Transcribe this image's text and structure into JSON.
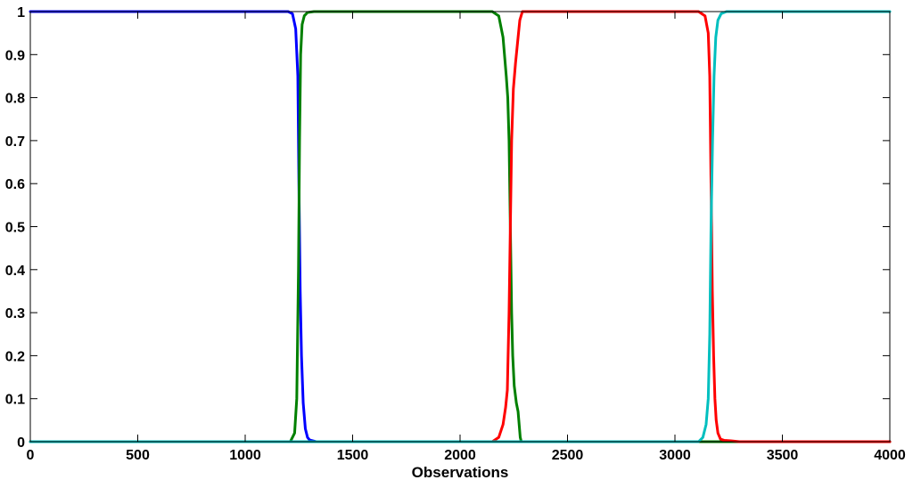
{
  "chart_data": {
    "type": "line",
    "title": "",
    "xlabel": "Observations",
    "ylabel": "",
    "xlim": [
      0,
      4000
    ],
    "ylim": [
      0,
      1
    ],
    "x_ticks": [
      0,
      500,
      1000,
      1500,
      2000,
      2500,
      3000,
      3500,
      4000
    ],
    "y_ticks": [
      0,
      0.1,
      0.2,
      0.3,
      0.4,
      0.5,
      0.6,
      0.7,
      0.8,
      0.9,
      1
    ],
    "x_tick_labels": [
      "0",
      "500",
      "1000",
      "1500",
      "2000",
      "2500",
      "3000",
      "3500",
      "4000"
    ],
    "y_tick_labels": [
      "0",
      "0.1",
      "0.2",
      "0.3",
      "0.4",
      "0.5",
      "0.6",
      "0.7",
      "0.8",
      "0.9",
      "1"
    ],
    "grid": false,
    "legend": "none",
    "series": [
      {
        "color": "#0000ff",
        "x": [
          0,
          1200,
          1220,
          1235,
          1245,
          1250,
          1256,
          1262,
          1270,
          1280,
          1290,
          1300,
          1330,
          1400,
          4000
        ],
        "y": [
          1,
          1,
          0.995,
          0.96,
          0.85,
          0.6,
          0.35,
          0.2,
          0.09,
          0.03,
          0.01,
          0.004,
          0,
          0,
          0
        ]
      },
      {
        "color": "#008000",
        "x": [
          0,
          1210,
          1230,
          1240,
          1248,
          1253,
          1258,
          1265,
          1275,
          1290,
          1320,
          2150,
          2180,
          2200,
          2215,
          2222,
          2228,
          2234,
          2240,
          2245,
          2252,
          2262,
          2270,
          2280,
          2285,
          4000
        ],
        "y": [
          0,
          0,
          0.02,
          0.1,
          0.4,
          0.7,
          0.9,
          0.97,
          0.99,
          0.998,
          1,
          1,
          0.99,
          0.94,
          0.85,
          0.8,
          0.7,
          0.5,
          0.3,
          0.2,
          0.13,
          0.09,
          0.07,
          0.01,
          0,
          0
        ]
      },
      {
        "color": "#ff0000",
        "x": [
          0,
          2150,
          2180,
          2200,
          2212,
          2220,
          2228,
          2234,
          2240,
          2248,
          2258,
          2268,
          2278,
          2290,
          3110,
          3140,
          3155,
          3162,
          3168,
          3174,
          3180,
          3186,
          3192,
          3200,
          3212,
          3230,
          3260,
          3300,
          4000
        ],
        "y": [
          0,
          0,
          0.01,
          0.04,
          0.08,
          0.12,
          0.3,
          0.5,
          0.7,
          0.82,
          0.88,
          0.93,
          0.98,
          1,
          1,
          0.99,
          0.95,
          0.85,
          0.6,
          0.35,
          0.2,
          0.1,
          0.05,
          0.02,
          0.006,
          0.003,
          0.002,
          0,
          0
        ]
      },
      {
        "color": "#00bfbf",
        "x": [
          0,
          3110,
          3130,
          3145,
          3155,
          3162,
          3168,
          3175,
          3182,
          3190,
          3200,
          3215,
          3240,
          4000
        ],
        "y": [
          0,
          0,
          0.01,
          0.04,
          0.1,
          0.25,
          0.5,
          0.7,
          0.85,
          0.94,
          0.98,
          0.995,
          1,
          1
        ]
      }
    ]
  }
}
